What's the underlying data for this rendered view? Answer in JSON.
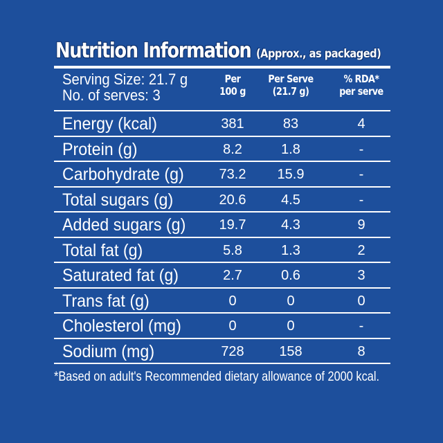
{
  "title": {
    "main": "Nutrition Information",
    "sub": "(Approx., as packaged)"
  },
  "header": {
    "serving_size": "Serving Size: 21.7 g",
    "servings": "No. of serves: 3",
    "col_per100_line1": "Per",
    "col_per100_line2": "100 g",
    "col_perserve_line1": "Per Serve",
    "col_perserve_line2": "(21.7 g)",
    "col_rda_line1": "% RDA*",
    "col_rda_line2": "per serve"
  },
  "rows": [
    {
      "label": "Energy (kcal)",
      "per100": "381",
      "perserve": "83",
      "rda": "4"
    },
    {
      "label": "Protein (g)",
      "per100": "8.2",
      "perserve": "1.8",
      "rda": "-"
    },
    {
      "label": "Carbohydrate (g)",
      "per100": "73.2",
      "perserve": "15.9",
      "rda": "-"
    },
    {
      "label": "Total sugars (g)",
      "per100": "20.6",
      "perserve": "4.5",
      "rda": "-"
    },
    {
      "label": "Added sugars (g)",
      "per100": "19.7",
      "perserve": "4.3",
      "rda": "9"
    },
    {
      "label": "Total fat (g)",
      "per100": "5.8",
      "perserve": "1.3",
      "rda": "2"
    },
    {
      "label": "Saturated fat (g)",
      "per100": "2.7",
      "perserve": "0.6",
      "rda": "3"
    },
    {
      "label": "Trans fat (g)",
      "per100": "0",
      "perserve": "0",
      "rda": "0"
    },
    {
      "label": "Cholesterol (mg)",
      "per100": "0",
      "perserve": "0",
      "rda": "-"
    },
    {
      "label": "Sodium (mg)",
      "per100": "728",
      "perserve": "158",
      "rda": "8"
    }
  ],
  "footnote": "*Based on adult's Recommended dietary allowance of 2000 kcal.",
  "colors": {
    "background": "#1d4f9c",
    "text": "#ffffff"
  }
}
